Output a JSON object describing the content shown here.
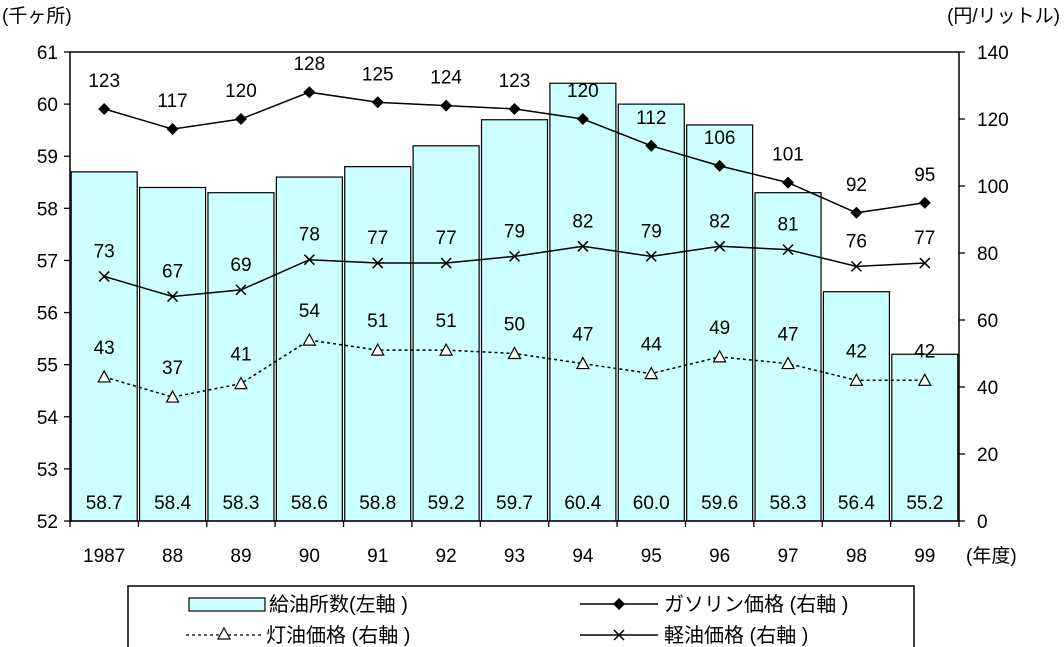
{
  "chart_data": {
    "type": "bar",
    "categories": [
      "1987",
      "88",
      "89",
      "90",
      "91",
      "92",
      "93",
      "94",
      "95",
      "96",
      "97",
      "98",
      "99"
    ],
    "x_unit_label": "(年度)",
    "left_axis": {
      "unit_label": "(千ヶ所)",
      "ylim": [
        52,
        61
      ],
      "ticks": [
        "52",
        "53",
        "54",
        "55",
        "56",
        "57",
        "58",
        "59",
        "60",
        "61"
      ]
    },
    "right_axis": {
      "unit_label": "(円/リットル)",
      "ylim": [
        0,
        140
      ],
      "ticks": [
        "0",
        "20",
        "40",
        "60",
        "80",
        "100",
        "120",
        "140"
      ]
    },
    "grid": false,
    "legend_position": "bottom",
    "series": [
      {
        "name": "給油所数(左軸)",
        "kind": "bar",
        "axis": "left",
        "color": "#ccffff",
        "values": [
          58.7,
          58.4,
          58.3,
          58.6,
          58.8,
          59.2,
          59.7,
          60.4,
          60.0,
          59.6,
          58.3,
          56.4,
          55.2
        ],
        "labels": [
          "58.7",
          "58.4",
          "58.3",
          "58.6",
          "58.8",
          "59.2",
          "59.7",
          "60.4",
          "60.0",
          "59.6",
          "58.3",
          "56.4",
          "55.2"
        ]
      },
      {
        "name": "ガソリン価格(右軸)",
        "kind": "line",
        "axis": "right",
        "marker": "diamond",
        "dash": "solid",
        "color": "#000000",
        "values": [
          123,
          117,
          120,
          128,
          125,
          124,
          123,
          120,
          112,
          106,
          101,
          92,
          95
        ],
        "labels": [
          "123",
          "117",
          "120",
          "128",
          "125",
          "124",
          "123",
          "120",
          "112",
          "106",
          "101",
          "92",
          "95"
        ]
      },
      {
        "name": "軽油価格(右軸)",
        "kind": "line",
        "axis": "right",
        "marker": "x",
        "dash": "solid",
        "color": "#000000",
        "values": [
          73,
          67,
          69,
          78,
          77,
          77,
          79,
          82,
          79,
          82,
          81,
          76,
          77
        ],
        "labels": [
          "73",
          "67",
          "69",
          "78",
          "77",
          "77",
          "79",
          "82",
          "79",
          "82",
          "81",
          "76",
          "77"
        ]
      },
      {
        "name": "灯油価格(右軸)",
        "kind": "line",
        "axis": "right",
        "marker": "triangle",
        "dash": "dotted",
        "color": "#000000",
        "values": [
          43,
          37,
          41,
          54,
          51,
          51,
          50,
          47,
          44,
          49,
          47,
          42,
          42
        ],
        "labels": [
          "43",
          "37",
          "41",
          "54",
          "51",
          "51",
          "50",
          "47",
          "44",
          "49",
          "47",
          "42",
          "42"
        ]
      }
    ]
  },
  "legend": {
    "rows": [
      [
        "給油所数(左軸 )",
        "ガソリン価格 (右軸 )"
      ],
      [
        "灯油価格 (右軸 )",
        "軽油価格 (右軸 )"
      ]
    ]
  }
}
